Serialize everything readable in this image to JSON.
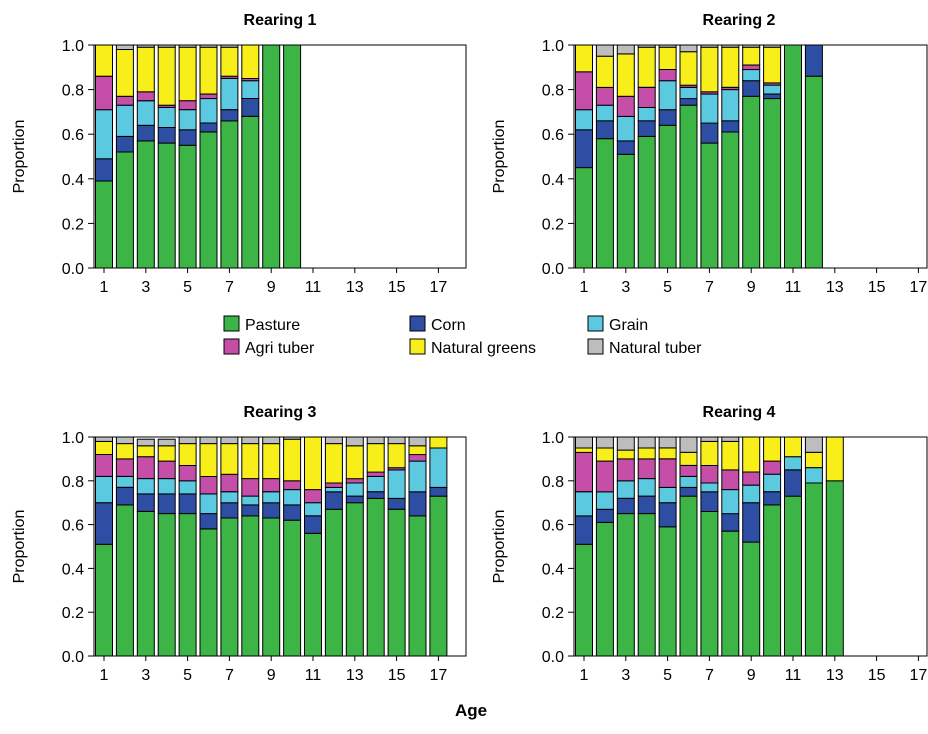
{
  "figure": {
    "xlabel": "Age"
  },
  "legend": {
    "items": [
      {
        "name": "Pasture",
        "color": "#3cb446"
      },
      {
        "name": "Corn",
        "color": "#2e4ea3"
      },
      {
        "name": "Grain",
        "color": "#5bc9df"
      },
      {
        "name": "Agri tuber",
        "color": "#c54ea8"
      },
      {
        "name": "Natural greens",
        "color": "#f7ee1a"
      },
      {
        "name": "Natural tuber",
        "color": "#bdbdbd"
      }
    ]
  },
  "chart_data": [
    {
      "type": "bar",
      "stacked": true,
      "title": "Rearing 1",
      "ylabel": "Proportion",
      "ylim": [
        0,
        1.0
      ],
      "yticks": [
        "0.0",
        "0.2",
        "0.4",
        "0.6",
        "0.8",
        "1.0"
      ],
      "xticks": [
        "1",
        "3",
        "5",
        "7",
        "9",
        "11",
        "13",
        "15",
        "17"
      ],
      "x": [
        1,
        2,
        3,
        4,
        5,
        6,
        7,
        8,
        9,
        10,
        11,
        12,
        13,
        14,
        15,
        16,
        17
      ],
      "series": [
        {
          "name": "Pasture",
          "values": [
            0.39,
            0.52,
            0.57,
            0.56,
            0.55,
            0.61,
            0.66,
            0.68,
            1.0,
            1.0,
            0,
            0,
            0,
            0,
            0,
            0,
            0
          ]
        },
        {
          "name": "Corn",
          "values": [
            0.1,
            0.07,
            0.07,
            0.07,
            0.07,
            0.04,
            0.05,
            0.08,
            0,
            0,
            0,
            0,
            0,
            0,
            0,
            0,
            0
          ]
        },
        {
          "name": "Grain",
          "values": [
            0.22,
            0.14,
            0.11,
            0.09,
            0.09,
            0.11,
            0.14,
            0.08,
            0,
            0,
            0,
            0,
            0,
            0,
            0,
            0,
            0
          ]
        },
        {
          "name": "Agri tuber",
          "values": [
            0.15,
            0.04,
            0.04,
            0.01,
            0.04,
            0.02,
            0.01,
            0.01,
            0,
            0,
            0,
            0,
            0,
            0,
            0,
            0,
            0
          ]
        },
        {
          "name": "Natural greens",
          "values": [
            0.14,
            0.21,
            0.2,
            0.26,
            0.24,
            0.21,
            0.13,
            0.15,
            0,
            0,
            0,
            0,
            0,
            0,
            0,
            0,
            0
          ]
        },
        {
          "name": "Natural tuber",
          "values": [
            0,
            0.02,
            0.01,
            0.01,
            0.01,
            0.01,
            0.01,
            0,
            0,
            0,
            0,
            0,
            0,
            0,
            0,
            0,
            0
          ]
        }
      ]
    },
    {
      "type": "bar",
      "stacked": true,
      "title": "Rearing 2",
      "ylabel": "Proportion",
      "ylim": [
        0,
        1.0
      ],
      "yticks": [
        "0.0",
        "0.2",
        "0.4",
        "0.6",
        "0.8",
        "1.0"
      ],
      "xticks": [
        "1",
        "3",
        "5",
        "7",
        "9",
        "11",
        "13",
        "15",
        "17"
      ],
      "x": [
        1,
        2,
        3,
        4,
        5,
        6,
        7,
        8,
        9,
        10,
        11,
        12,
        13,
        14,
        15,
        16,
        17
      ],
      "series": [
        {
          "name": "Pasture",
          "values": [
            0.45,
            0.58,
            0.51,
            0.59,
            0.64,
            0.73,
            0.56,
            0.61,
            0.77,
            0.76,
            1.0,
            0.86,
            0,
            0,
            0,
            0,
            0
          ]
        },
        {
          "name": "Corn",
          "values": [
            0.17,
            0.08,
            0.06,
            0.07,
            0.07,
            0.03,
            0.09,
            0.05,
            0.07,
            0.02,
            0,
            0.14,
            0,
            0,
            0,
            0,
            0
          ]
        },
        {
          "name": "Grain",
          "values": [
            0.09,
            0.07,
            0.11,
            0.06,
            0.13,
            0.05,
            0.13,
            0.14,
            0.05,
            0.04,
            0,
            0,
            0,
            0,
            0,
            0,
            0
          ]
        },
        {
          "name": "Agri tuber",
          "values": [
            0.17,
            0.08,
            0.09,
            0.09,
            0.05,
            0.01,
            0.01,
            0.01,
            0.02,
            0.01,
            0,
            0,
            0,
            0,
            0,
            0,
            0
          ]
        },
        {
          "name": "Natural greens",
          "values": [
            0.12,
            0.14,
            0.19,
            0.18,
            0.1,
            0.15,
            0.2,
            0.18,
            0.08,
            0.16,
            0,
            0,
            0,
            0,
            0,
            0,
            0
          ]
        },
        {
          "name": "Natural tuber",
          "values": [
            0,
            0.05,
            0.04,
            0.01,
            0.01,
            0.03,
            0.01,
            0.01,
            0.01,
            0.01,
            0,
            0,
            0,
            0,
            0,
            0,
            0
          ]
        }
      ]
    },
    {
      "type": "bar",
      "stacked": true,
      "title": "Rearing 3",
      "ylabel": "Proportion",
      "ylim": [
        0,
        1.0
      ],
      "yticks": [
        "0.0",
        "0.2",
        "0.4",
        "0.6",
        "0.8",
        "1.0"
      ],
      "xticks": [
        "1",
        "3",
        "5",
        "7",
        "9",
        "11",
        "13",
        "15",
        "17"
      ],
      "x": [
        1,
        2,
        3,
        4,
        5,
        6,
        7,
        8,
        9,
        10,
        11,
        12,
        13,
        14,
        15,
        16,
        17
      ],
      "series": [
        {
          "name": "Pasture",
          "values": [
            0.51,
            0.69,
            0.66,
            0.65,
            0.65,
            0.58,
            0.63,
            0.64,
            0.63,
            0.62,
            0.56,
            0.67,
            0.7,
            0.72,
            0.67,
            0.64,
            0.73
          ]
        },
        {
          "name": "Corn",
          "values": [
            0.19,
            0.08,
            0.08,
            0.09,
            0.09,
            0.07,
            0.07,
            0.05,
            0.07,
            0.07,
            0.08,
            0.08,
            0.03,
            0.03,
            0.05,
            0.11,
            0.04
          ]
        },
        {
          "name": "Grain",
          "values": [
            0.12,
            0.05,
            0.07,
            0.07,
            0.06,
            0.09,
            0.05,
            0.04,
            0.05,
            0.07,
            0.06,
            0.02,
            0.06,
            0.07,
            0.13,
            0.14,
            0.18
          ]
        },
        {
          "name": "Agri tuber",
          "values": [
            0.1,
            0.08,
            0.1,
            0.08,
            0.07,
            0.08,
            0.08,
            0.08,
            0.06,
            0.04,
            0.06,
            0.02,
            0.02,
            0.02,
            0.01,
            0.03,
            0
          ]
        },
        {
          "name": "Natural greens",
          "values": [
            0.06,
            0.07,
            0.05,
            0.07,
            0.1,
            0.15,
            0.14,
            0.16,
            0.16,
            0.19,
            0.24,
            0.18,
            0.15,
            0.13,
            0.11,
            0.04,
            0.05
          ]
        },
        {
          "name": "Natural tuber",
          "values": [
            0.02,
            0.03,
            0.03,
            0.03,
            0.03,
            0.03,
            0.03,
            0.03,
            0.03,
            0.01,
            0,
            0.03,
            0.04,
            0.03,
            0.03,
            0.04,
            0
          ]
        }
      ]
    },
    {
      "type": "bar",
      "stacked": true,
      "title": "Rearing 4",
      "ylabel": "Proportion",
      "ylim": [
        0,
        1.0
      ],
      "yticks": [
        "0.0",
        "0.2",
        "0.4",
        "0.6",
        "0.8",
        "1.0"
      ],
      "xticks": [
        "1",
        "3",
        "5",
        "7",
        "9",
        "11",
        "13",
        "15",
        "17"
      ],
      "x": [
        1,
        2,
        3,
        4,
        5,
        6,
        7,
        8,
        9,
        10,
        11,
        12,
        13,
        14,
        15,
        16,
        17
      ],
      "series": [
        {
          "name": "Pasture",
          "values": [
            0.51,
            0.61,
            0.65,
            0.65,
            0.59,
            0.73,
            0.66,
            0.57,
            0.52,
            0.69,
            0.73,
            0.79,
            0.8,
            0,
            0,
            0,
            0
          ]
        },
        {
          "name": "Corn",
          "values": [
            0.13,
            0.06,
            0.07,
            0.08,
            0.11,
            0.04,
            0.09,
            0.08,
            0.18,
            0.06,
            0.12,
            0,
            0,
            0,
            0,
            0,
            0
          ]
        },
        {
          "name": "Grain",
          "values": [
            0.11,
            0.08,
            0.08,
            0.08,
            0.07,
            0.05,
            0.04,
            0.11,
            0.08,
            0.08,
            0.06,
            0.07,
            0,
            0,
            0,
            0,
            0
          ]
        },
        {
          "name": "Agri tuber",
          "values": [
            0.18,
            0.14,
            0.1,
            0.09,
            0.13,
            0.05,
            0.08,
            0.09,
            0.06,
            0.06,
            0,
            0,
            0,
            0,
            0,
            0,
            0
          ]
        },
        {
          "name": "Natural greens",
          "values": [
            0.02,
            0.06,
            0.04,
            0.05,
            0.05,
            0.06,
            0.11,
            0.13,
            0.16,
            0.11,
            0.09,
            0.07,
            0.2,
            0,
            0,
            0,
            0
          ]
        },
        {
          "name": "Natural tuber",
          "values": [
            0.05,
            0.05,
            0.06,
            0.05,
            0.05,
            0.07,
            0.02,
            0.02,
            0,
            0,
            0,
            0.07,
            0,
            0,
            0,
            0,
            0
          ]
        }
      ]
    }
  ]
}
